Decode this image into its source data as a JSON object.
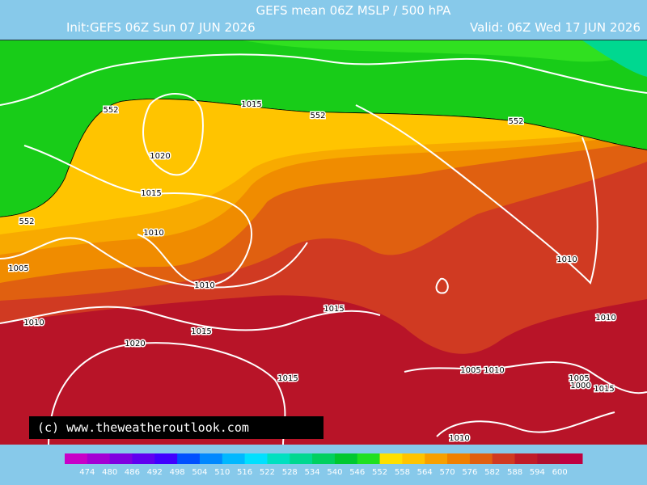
{
  "header": {
    "title": "GEFS mean 06Z MSLP / 500 hPA",
    "init": "Init:GEFS 06Z Sun 07 JUN 2026",
    "valid": "Valid: 06Z Wed 17 JUN 2026"
  },
  "map": {
    "contour_labels": [
      552,
      1015,
      552,
      552,
      1020,
      1015,
      552,
      1010,
      1005,
      1010,
      1010,
      1015,
      1010,
      1015,
      1010,
      1020,
      1005,
      1010,
      1015,
      1005,
      1000,
      1015,
      1010
    ],
    "copyright": "(c)  www.theweatheroutlook.com"
  },
  "colorbar": {
    "ticks": [
      474,
      480,
      486,
      492,
      498,
      504,
      510,
      516,
      522,
      528,
      534,
      540,
      546,
      552,
      558,
      564,
      570,
      576,
      582,
      588,
      594,
      600
    ],
    "colors": [
      "#c800c8",
      "#a400d4",
      "#8000e0",
      "#6000f0",
      "#4000ff",
      "#0050ff",
      "#0088ff",
      "#00b8ff",
      "#00e0ff",
      "#00e0c0",
      "#00d890",
      "#00d060",
      "#00c830",
      "#20e020",
      "#ffe000",
      "#ffc400",
      "#f8a000",
      "#f08000",
      "#e06010",
      "#d03a22",
      "#c01c28",
      "#b01030",
      "#c00040"
    ]
  }
}
